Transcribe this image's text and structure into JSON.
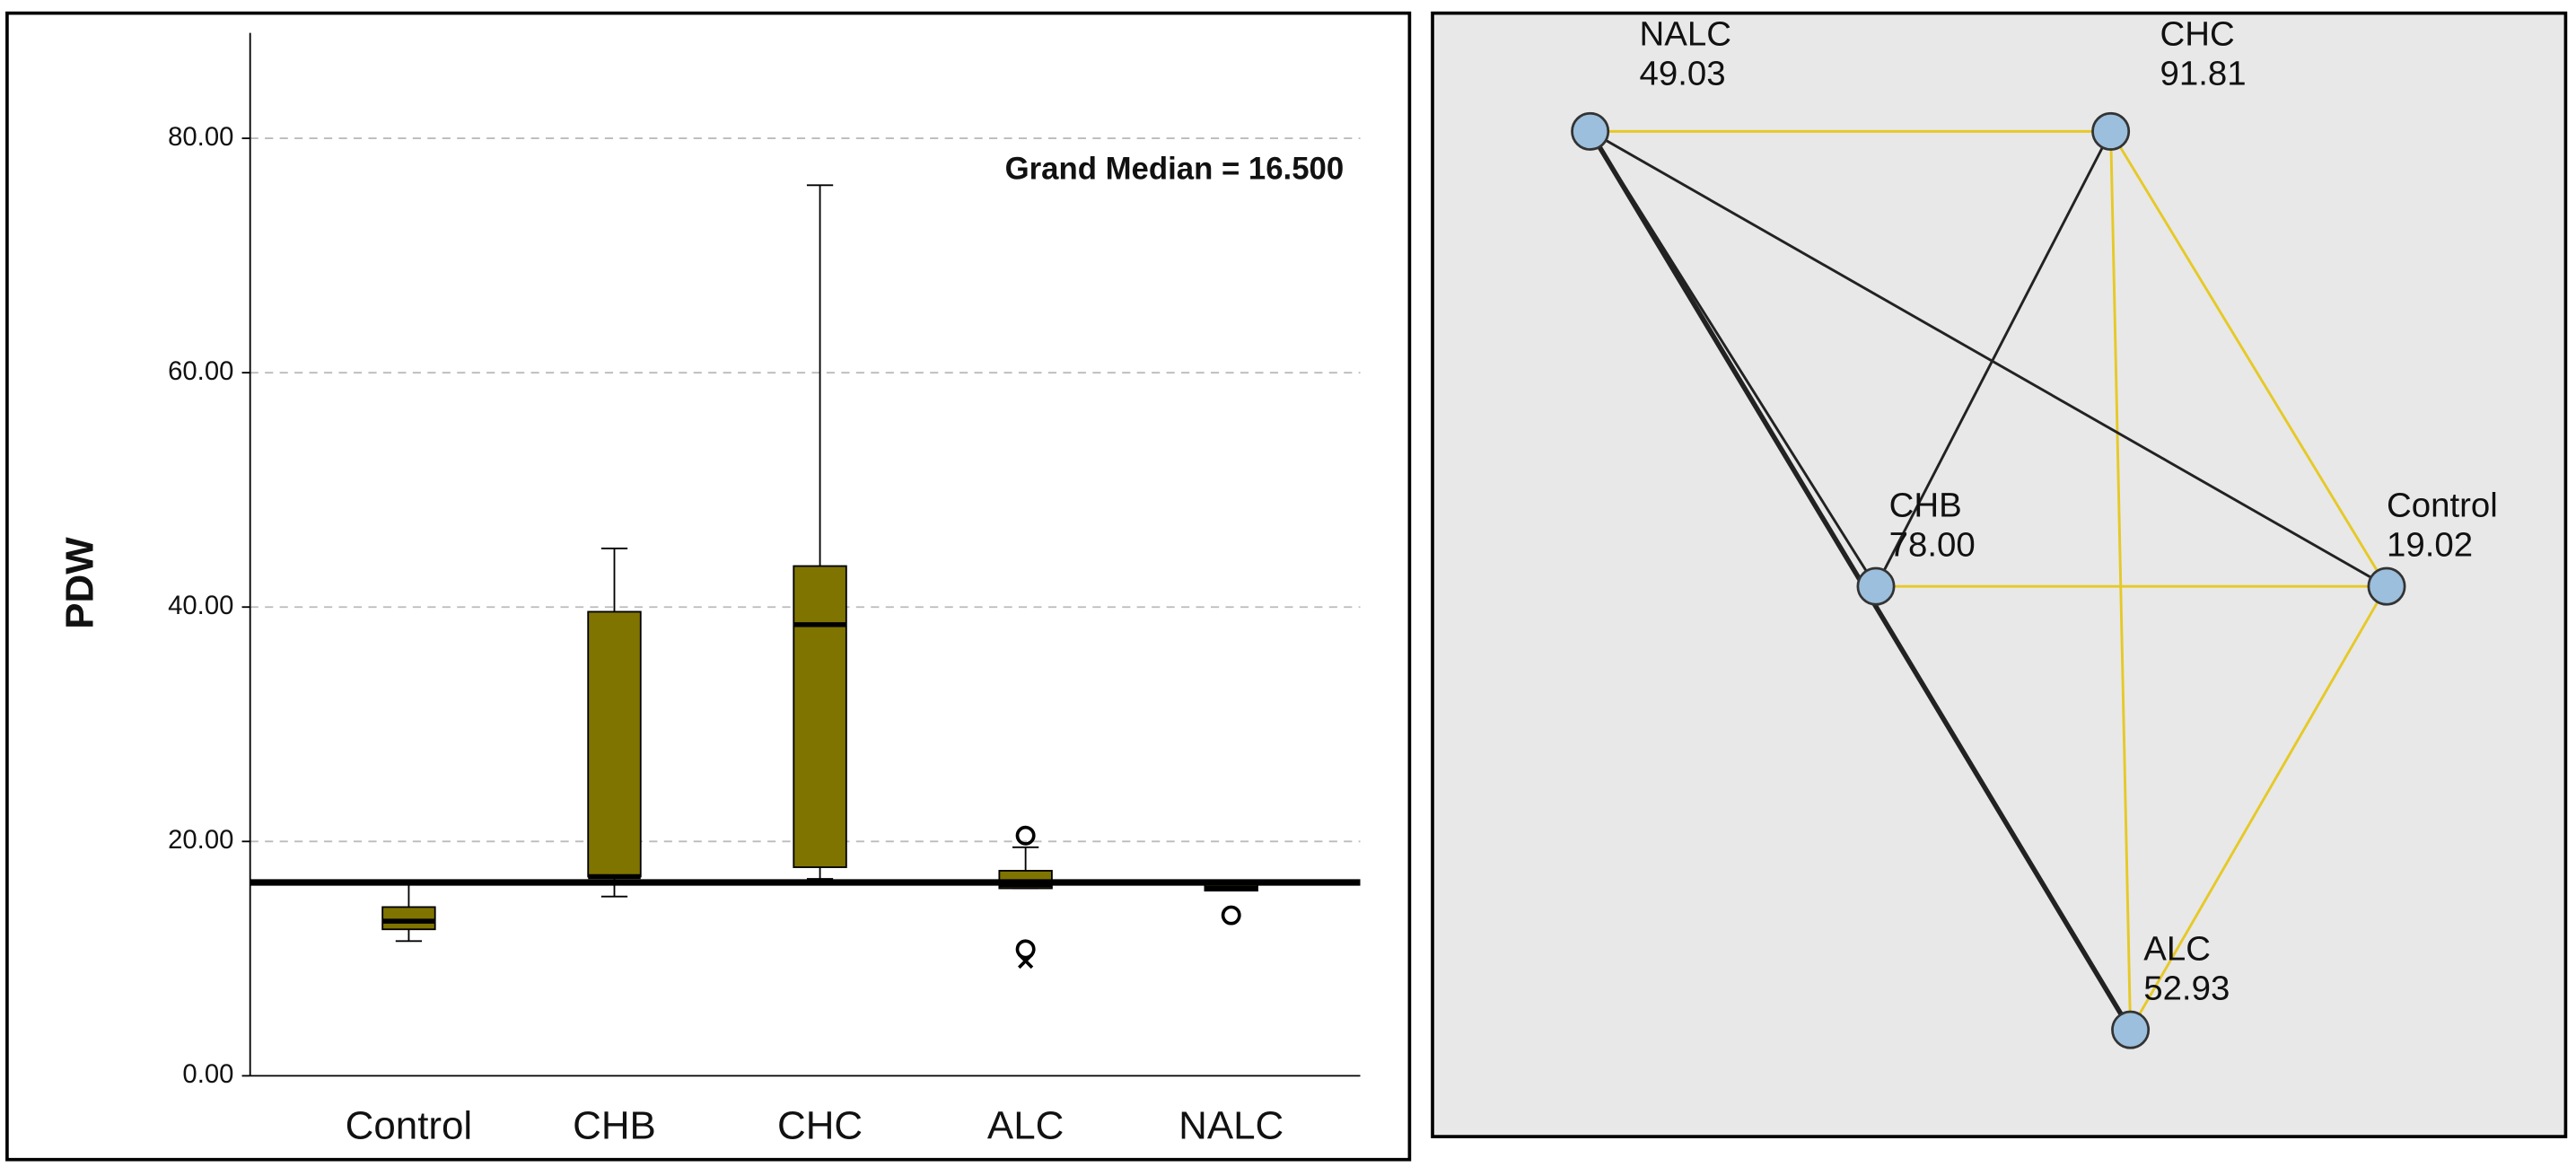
{
  "chart_data": [
    {
      "type": "box",
      "y_label": "PDW",
      "categories": [
        "Control",
        "CHB",
        "CHC",
        "ALC",
        "NALC"
      ],
      "boxes": [
        {
          "min": 11.5,
          "q1": 12.5,
          "median": 13.2,
          "q3": 14.4,
          "max": 16.5
        },
        {
          "min": 15.3,
          "q1": 17.0,
          "median": 17.0,
          "q3": 39.6,
          "max": 45.0
        },
        {
          "min": 16.8,
          "q1": 17.8,
          "median": 38.5,
          "q3": 43.5,
          "max": 76.0
        },
        {
          "min": 16.0,
          "q1": 16.0,
          "median": 16.3,
          "q3": 17.5,
          "max": 19.5
        },
        {
          "min": 15.8,
          "q1": 15.8,
          "median": 16.0,
          "q3": 16.5,
          "max": 16.5
        }
      ],
      "outliers": [
        [],
        [],
        [],
        [
          20.5,
          10.8
        ],
        [
          13.7
        ]
      ],
      "extremes": [
        [],
        [],
        [],
        [
          9.8
        ],
        []
      ],
      "color": "#7f7400",
      "reference_line": 16.5,
      "annotation": "Grand Median = 16.500",
      "ylim": [
        0,
        89
      ],
      "yticks": [
        {
          "value": 0,
          "label": "0.00"
        },
        {
          "value": 20,
          "label": "20.00"
        },
        {
          "value": 40,
          "label": "40.00"
        },
        {
          "value": 60,
          "label": "60.00"
        },
        {
          "value": 80,
          "label": "80.00"
        }
      ],
      "grid": true
    },
    {
      "type": "network",
      "nodes": [
        "NALC",
        "CHC",
        "CHB",
        "Control",
        "ALC"
      ],
      "values": [
        49.03,
        91.81,
        78,
        19.02,
        52.93
      ],
      "value_labels": [
        "49.03",
        "91.81",
        "78.00",
        "19.02",
        "52.93"
      ],
      "node_color": "#9bbfdc",
      "edges": [
        {
          "source": 0,
          "target": 1,
          "color": "#e6c928"
        },
        {
          "source": 1,
          "target": 3,
          "color": "#e6c928"
        },
        {
          "source": 1,
          "target": 4,
          "color": "#e6c928"
        },
        {
          "source": 2,
          "target": 3,
          "color": "#e6c928"
        },
        {
          "source": 3,
          "target": 4,
          "color": "#e6c928"
        },
        {
          "source": 0,
          "target": 4,
          "color": "#222222"
        },
        {
          "source": 0,
          "target": 2,
          "color": "#222222"
        },
        {
          "source": 0,
          "target": 3,
          "color": "#222222"
        },
        {
          "source": 2,
          "target": 1,
          "color": "#222222"
        }
      ]
    }
  ]
}
